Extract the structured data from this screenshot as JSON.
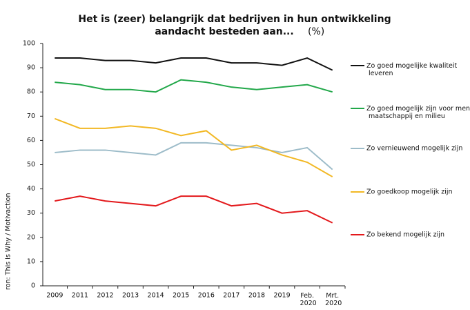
{
  "chart_data": {
    "type": "line",
    "title_lines": [
      "Het is (zeer) belangrijk dat bedrijven in hun ontwikkeling",
      "aandacht besteden aan..."
    ],
    "title_unit": "(%)",
    "source": "ron: This Is Why / Motivaction",
    "categories": [
      "2009",
      "2011",
      "2012",
      "2013",
      "2014",
      "2015",
      "2016",
      "2017",
      "2018",
      "2019",
      "Feb. 2020",
      "Mrt. 2020"
    ],
    "ylim": [
      0,
      100
    ],
    "yticks": [
      0,
      10,
      20,
      30,
      40,
      50,
      60,
      70,
      80,
      90,
      100
    ],
    "grid": false,
    "legend": "right",
    "series": [
      {
        "name": "Zo goed mogelijke kwaliteit leveren",
        "color": "#111111",
        "values": [
          94,
          94,
          93,
          93,
          92,
          94,
          94,
          92,
          92,
          91,
          94,
          89
        ]
      },
      {
        "name": "Zo goed mogelijk zijn voor mens maatschappij en milieu",
        "color": "#22a84a",
        "values": [
          84,
          83,
          81,
          81,
          80,
          85,
          84,
          82,
          81,
          82,
          83,
          80
        ]
      },
      {
        "name": "Zo vernieuwend mogelijk zijn",
        "color": "#9dbcc9",
        "values": [
          55,
          56,
          56,
          55,
          54,
          59,
          59,
          58,
          57,
          55,
          57,
          48
        ]
      },
      {
        "name": "Zo goedkoop mogelijk zijn",
        "color": "#f2b824",
        "values": [
          69,
          65,
          65,
          66,
          65,
          62,
          64,
          56,
          58,
          54,
          51,
          45
        ]
      },
      {
        "name": "Zo bekend mogelijk zijn",
        "color": "#e3191c",
        "values": [
          35,
          37,
          35,
          34,
          33,
          37,
          37,
          33,
          34,
          30,
          31,
          26
        ]
      }
    ]
  }
}
